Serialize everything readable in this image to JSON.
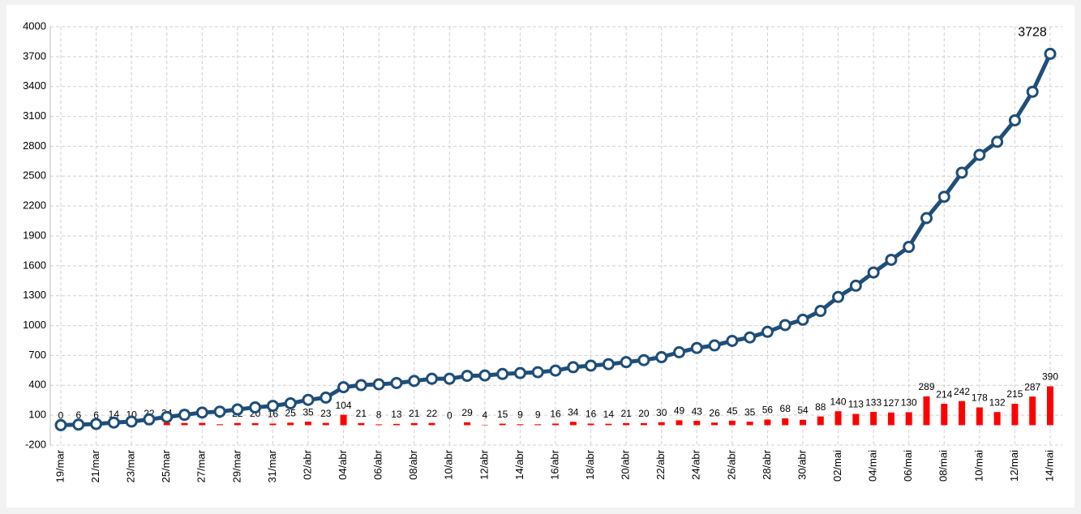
{
  "chart_data": {
    "type": "bar_line",
    "categories": [
      "19/mar",
      null,
      "21/mar",
      null,
      "23/mar",
      null,
      "25/mar",
      null,
      "27/mar",
      null,
      "29/mar",
      null,
      "31/mar",
      null,
      "02/abr",
      null,
      "04/abr",
      null,
      "06/abr",
      null,
      "08/abr",
      null,
      "10/abr",
      null,
      "12/abr",
      null,
      "14/abr",
      null,
      "16/abr",
      null,
      "18/abr",
      null,
      "20/abr",
      null,
      "22/abr",
      null,
      "24/abr",
      null,
      "26/abr",
      null,
      "28/abr",
      null,
      "30/abr",
      null,
      "02/mai",
      null,
      "04/mai",
      null,
      "06/mai",
      null,
      "08/mai",
      null,
      "10/mai",
      null,
      "12/mai",
      null,
      "14/mai"
    ],
    "series": [
      {
        "type": "bar",
        "color": "#ff0000",
        "values": [
          0,
          6,
          6,
          14,
          10,
          22,
          24,
          22,
          23,
          9,
          22,
          20,
          16,
          25,
          35,
          23,
          104,
          21,
          8,
          13,
          21,
          22,
          0,
          29,
          4,
          15,
          9,
          9,
          16,
          34,
          16,
          14,
          21,
          20,
          30,
          49,
          43,
          26,
          45,
          35,
          56,
          68,
          54,
          88,
          140,
          113,
          133,
          127,
          130,
          289,
          214,
          242,
          178,
          132,
          215,
          287,
          390
        ]
      },
      {
        "type": "line",
        "color": "#1f4e79",
        "values": [
          0,
          6,
          12,
          26,
          36,
          58,
          82,
          104,
          127,
          136,
          158,
          178,
          194,
          219,
          254,
          277,
          381,
          402,
          410,
          423,
          444,
          466,
          466,
          495,
          499,
          514,
          523,
          532,
          548,
          582,
          598,
          612,
          633,
          653,
          683,
          732,
          775,
          801,
          846,
          881,
          937,
          1005,
          1059,
          1147,
          1287,
          1400,
          1533,
          1660,
          1790,
          2079,
          2293,
          2535,
          2713,
          2845,
          3060,
          3347,
          3728
        ]
      }
    ],
    "ylim": [
      -200,
      4000
    ],
    "yticks": [
      -200,
      100,
      400,
      700,
      1000,
      1300,
      1600,
      1900,
      2200,
      2500,
      2800,
      3100,
      3400,
      3700,
      4000
    ],
    "grid": true
  }
}
